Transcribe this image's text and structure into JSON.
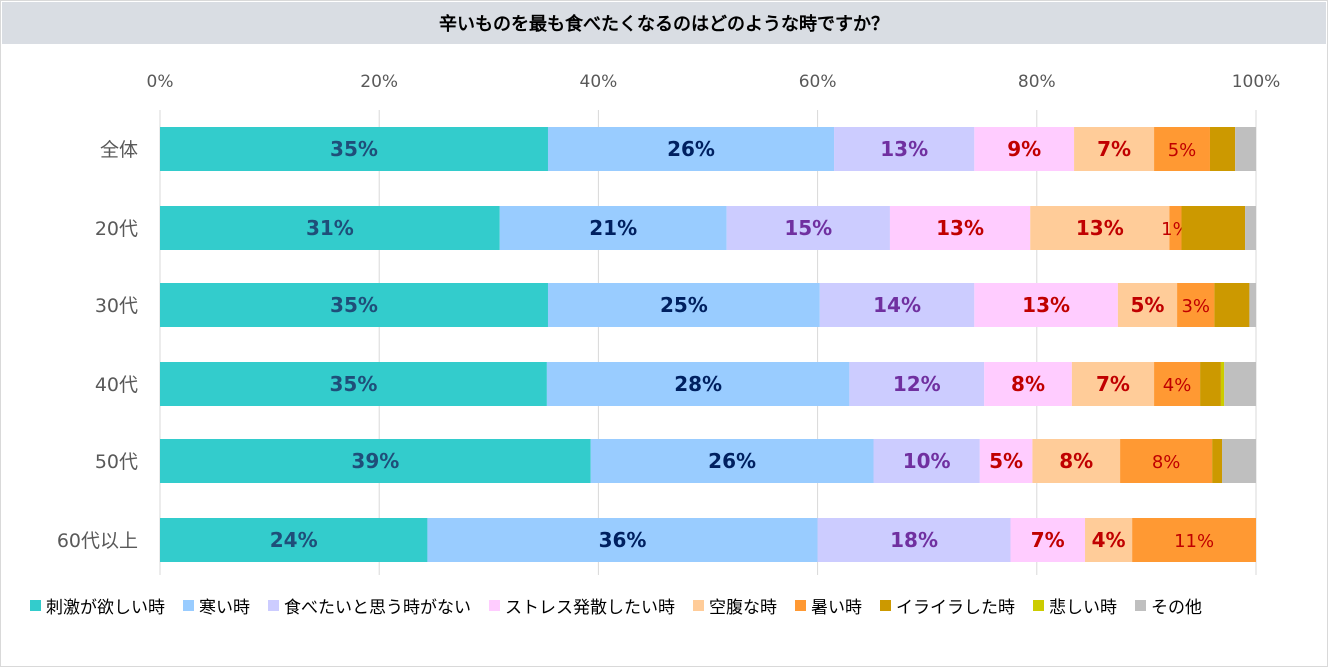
{
  "chart_data": {
    "type": "bar",
    "orientation": "horizontal",
    "stacked": "percent",
    "title": "辛いものを最も食べたくなるのはどのような時ですか？",
    "categories": [
      "全体",
      "20代",
      "30代",
      "40代",
      "50代",
      "60代以上"
    ],
    "x_ticks": [
      "0%",
      "20%",
      "40%",
      "60%",
      "80%",
      "100%"
    ],
    "xlim": [
      0,
      100
    ],
    "x_axis_position": "top",
    "grid": true,
    "legend_position": "bottom",
    "series": [
      {
        "name": "刺激が欲しい時",
        "color": "#33cccc",
        "label_color": "#1f4e79",
        "bold": true,
        "values": [
          35.4,
          31.0,
          35.4,
          35.3,
          39.3,
          24.4
        ],
        "labels": [
          "35%",
          "31%",
          "35%",
          "35%",
          "39%",
          "24%"
        ]
      },
      {
        "name": "寒い時",
        "color": "#99ccff",
        "label_color": "#002060",
        "bold": true,
        "values": [
          26.1,
          20.7,
          24.8,
          27.6,
          25.8,
          35.6
        ],
        "labels": [
          "26%",
          "21%",
          "25%",
          "28%",
          "26%",
          "36%"
        ]
      },
      {
        "name": "食べたいと思う時がない",
        "color": "#ccccff",
        "label_color": "#7030a0",
        "bold": true,
        "values": [
          12.8,
          14.9,
          14.1,
          12.3,
          9.7,
          17.6
        ],
        "labels": [
          "13%",
          "15%",
          "14%",
          "12%",
          "10%",
          "18%"
        ]
      },
      {
        "name": "ストレス発散したい時",
        "color": "#ffccff",
        "label_color": "#c00000",
        "bold": true,
        "values": [
          9.1,
          12.8,
          13.1,
          8.0,
          4.8,
          6.8
        ],
        "labels": [
          "9%",
          "13%",
          "13%",
          "8%",
          "5%",
          "7%"
        ]
      },
      {
        "name": "空腹な時",
        "color": "#ffcc99",
        "label_color": "#c00000",
        "bold": true,
        "values": [
          7.3,
          12.7,
          5.4,
          7.5,
          8.0,
          4.3
        ],
        "labels": [
          "7%",
          "13%",
          "5%",
          "7%",
          "8%",
          "4%"
        ]
      },
      {
        "name": "暑い時",
        "color": "#ff9933",
        "label_color": "#c00000",
        "bold": false,
        "values": [
          5.1,
          1.1,
          3.4,
          4.2,
          8.4,
          11.3
        ],
        "labels": [
          "5%",
          "1%",
          "3%",
          "4%",
          "8%",
          "11%"
        ]
      },
      {
        "name": "イライラした時",
        "color": "#cc9900",
        "label_color": "#c00000",
        "bold": false,
        "values": [
          2.3,
          5.8,
          3.2,
          1.9,
          0.9,
          0
        ],
        "labels": [
          "",
          "",
          "",
          "",
          "",
          ""
        ]
      },
      {
        "name": "悲しい時",
        "color": "#cccc00",
        "label_color": "#c00000",
        "bold": false,
        "values": [
          0,
          0,
          0,
          0.3,
          0,
          0
        ],
        "labels": [
          "",
          "",
          "",
          "",
          "",
          ""
        ]
      },
      {
        "name": "その他",
        "color": "#bfbfbf",
        "label_color": "#595959",
        "bold": false,
        "values": [
          1.9,
          1.0,
          0.6,
          2.9,
          3.1,
          0
        ],
        "labels": [
          "",
          "",
          "",
          "",
          "",
          ""
        ]
      }
    ]
  }
}
